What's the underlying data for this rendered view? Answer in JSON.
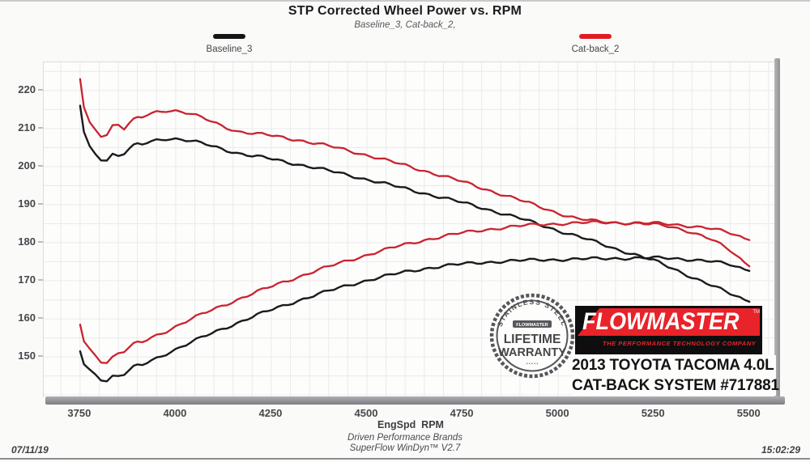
{
  "header": {
    "title": "STP Corrected Wheel Power vs. RPM",
    "subtitle": "Baseline_3, Cat-back_2,"
  },
  "legend": {
    "baseline": {
      "label": "Baseline_3",
      "color": "#151515"
    },
    "catback": {
      "label": "Cat-back_2",
      "color": "#e11b22"
    }
  },
  "chart_data": {
    "type": "line",
    "title": "STP Corrected Wheel Power vs. RPM",
    "xlabel": "EngSpd  RPM",
    "ylabel": "",
    "xlim": [
      3655,
      5580
    ],
    "ylim": [
      139.4,
      227.4
    ],
    "grid": {
      "on": true,
      "x_step": 50,
      "y_step": 5
    },
    "x_ticks": [
      3750,
      4000,
      4250,
      4500,
      4750,
      5000,
      5250,
      5500
    ],
    "y_ticks": [
      150,
      160,
      170,
      180,
      190,
      200,
      210,
      220
    ],
    "x": [
      3750,
      3760,
      3775,
      3790,
      3805,
      3820,
      3835,
      3850,
      3865,
      3880,
      3900,
      3925,
      3950,
      3975,
      4000,
      4040,
      4080,
      4120,
      4160,
      4200,
      4240,
      4280,
      4320,
      4360,
      4400,
      4440,
      4480,
      4520,
      4560,
      4600,
      4650,
      4700,
      4750,
      4800,
      4850,
      4900,
      4950,
      5000,
      5050,
      5100,
      5150,
      5200,
      5250,
      5300,
      5350,
      5400,
      5450,
      5500
    ],
    "series": [
      {
        "name": "Baseline_3 torque",
        "color": "#1b1b1d",
        "width": 2.4,
        "values": [
          216,
          209.5,
          205.2,
          203.2,
          202.4,
          202.2,
          203.1,
          202.7,
          203.6,
          204.5,
          205.4,
          206.3,
          207.0,
          207.4,
          207.3,
          206.7,
          205.8,
          204.7,
          203.6,
          202.8,
          202.2,
          201.4,
          200.6,
          199.8,
          198.9,
          198.0,
          197.1,
          196.2,
          195.2,
          194.2,
          193.0,
          191.8,
          190.5,
          189.2,
          187.8,
          186.4,
          184.8,
          183.2,
          181.7,
          180.1,
          178.4,
          176.9,
          175.3,
          173.2,
          171.0,
          168.8,
          166.6,
          164.5
        ]
      },
      {
        "name": "Baseline_3 power",
        "color": "#1b1b1d",
        "width": 2.4,
        "values": [
          151.5,
          148.5,
          146.5,
          145.3,
          144.6,
          144.2,
          144.8,
          144.9,
          145.6,
          146.3,
          147.3,
          148.5,
          149.7,
          150.9,
          152.0,
          153.8,
          155.6,
          157.3,
          158.9,
          160.5,
          162.0,
          163.4,
          164.8,
          166.1,
          167.3,
          168.5,
          169.6,
          170.6,
          171.5,
          172.3,
          173.2,
          173.9,
          174.4,
          174.8,
          175.1,
          175.3,
          175.5,
          175.6,
          175.7,
          175.8,
          175.9,
          176.0,
          176.0,
          175.9,
          175.6,
          175.1,
          174.2,
          172.6
        ]
      },
      {
        "name": "Cat-back_2 torque",
        "color": "#c9242f",
        "width": 2.3,
        "values": [
          223,
          216,
          211.5,
          209.6,
          208.6,
          208.9,
          210.6,
          210.9,
          210.1,
          211.2,
          212.3,
          213.6,
          214.4,
          214.8,
          214.7,
          213.8,
          212.4,
          210.8,
          209.3,
          208.7,
          208.3,
          207.7,
          207.0,
          206.2,
          205.4,
          204.5,
          203.5,
          202.5,
          201.4,
          200.3,
          198.9,
          197.5,
          196.0,
          194.4,
          192.8,
          191.2,
          189.5,
          187.8,
          186.3,
          185.6,
          185.3,
          185.1,
          184.8,
          184.1,
          182.8,
          180.9,
          177.9,
          173.8
        ]
      },
      {
        "name": "Cat-back_2 power",
        "color": "#c9242f",
        "width": 2.3,
        "values": [
          158.5,
          154.5,
          152.0,
          150.3,
          149.3,
          149.0,
          149.8,
          150.9,
          151.6,
          152.3,
          153.3,
          154.5,
          155.7,
          156.8,
          158.0,
          159.9,
          161.7,
          163.4,
          165.0,
          166.6,
          168.1,
          169.6,
          171.0,
          172.4,
          173.7,
          175.0,
          176.2,
          177.4,
          178.5,
          179.5,
          180.7,
          181.7,
          182.6,
          183.3,
          183.9,
          184.4,
          184.8,
          185.0,
          185.2,
          185.3,
          185.3,
          185.2,
          185.1,
          184.8,
          184.4,
          183.7,
          182.5,
          180.7
        ]
      }
    ]
  },
  "branding": {
    "badge": {
      "arc_top": "STAINLESS STEEL",
      "banner": "FLOWMASTER",
      "line1": "LIFETIME",
      "line2": "WARRANTY",
      "dots": "• • • • •"
    },
    "logo": {
      "name": "FLOWMASTER",
      "tm": "TM",
      "tagline": "THE PERFORMANCE TECHNOLOGY COMPANY"
    },
    "vehicle_line1": "2013 TOYOTA TACOMA 4.0L",
    "vehicle_line2": "CAT-BACK SYSTEM #717881"
  },
  "footer": {
    "date": "07/11/19",
    "center_line1": "Driven Performance Brands",
    "center_line2": "SuperFlow WinDyn™ V2.7",
    "time": "15:02:29"
  }
}
